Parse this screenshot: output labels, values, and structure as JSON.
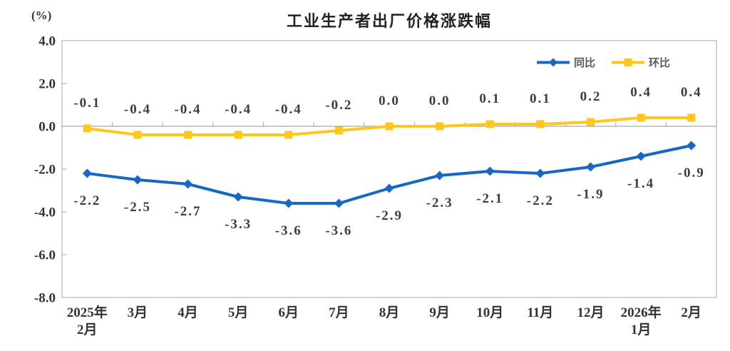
{
  "header": {
    "unit_label": "(%)",
    "title": "工业生产者出厂价格涨跌幅"
  },
  "legend": [
    {
      "name": "同比",
      "color": "#1868C2",
      "marker": "diamond"
    },
    {
      "name": "环比",
      "color": "#FFC61E",
      "marker": "square"
    }
  ],
  "colors": {
    "yoy_line": "#1868C2",
    "mom_line": "#FFC61E",
    "axis_border": "#A6A6A6",
    "text": "#333333"
  },
  "chart_data": {
    "type": "line",
    "title": "工业生产者出厂价格涨跌幅",
    "ylabel": "(%)",
    "xlabel": "",
    "ylim": [
      -8.0,
      4.0
    ],
    "ytick_step": 2.0,
    "yticks": [
      {
        "value": 4.0,
        "label": "4.0"
      },
      {
        "value": 2.0,
        "label": "2.0"
      },
      {
        "value": 0.0,
        "label": "0.0"
      },
      {
        "value": -2.0,
        "label": "-2.0"
      },
      {
        "value": -4.0,
        "label": "-4.0"
      },
      {
        "value": -6.0,
        "label": "-6.0"
      },
      {
        "value": -8.0,
        "label": "-8.0"
      }
    ],
    "categories": [
      "2025年\n2月",
      "3月",
      "4月",
      "5月",
      "6月",
      "7月",
      "8月",
      "9月",
      "10月",
      "11月",
      "12月",
      "2026年\n1月",
      "2月"
    ],
    "series": [
      {
        "name": "同比",
        "color": "#1868C2",
        "marker": "diamond",
        "label_position": "below",
        "values": [
          -2.2,
          -2.5,
          -2.7,
          -3.3,
          -3.6,
          -3.6,
          -2.9,
          -2.3,
          -2.1,
          -2.2,
          -1.9,
          -1.4,
          -0.9
        ],
        "labels": [
          "-2.2",
          "-2.5",
          "-2.7",
          "-3.3",
          "-3.6",
          "-3.6",
          "-2.9",
          "-2.3",
          "-2.1",
          "-2.2",
          "-1.9",
          "-1.4",
          "-0.9"
        ]
      },
      {
        "name": "环比",
        "color": "#FFC61E",
        "marker": "square",
        "label_position": "above",
        "values": [
          -0.1,
          -0.4,
          -0.4,
          -0.4,
          -0.4,
          -0.2,
          0.0,
          0.0,
          0.1,
          0.1,
          0.2,
          0.4,
          0.4
        ],
        "labels": [
          "-0.1",
          "-0.4",
          "-0.4",
          "-0.4",
          "-0.4",
          "-0.2",
          "0.0",
          "0.0",
          "0.1",
          "0.1",
          "0.2",
          "0.4",
          "0.4"
        ]
      }
    ],
    "grid": false,
    "zero_line": true,
    "legend_position": "top-right"
  }
}
